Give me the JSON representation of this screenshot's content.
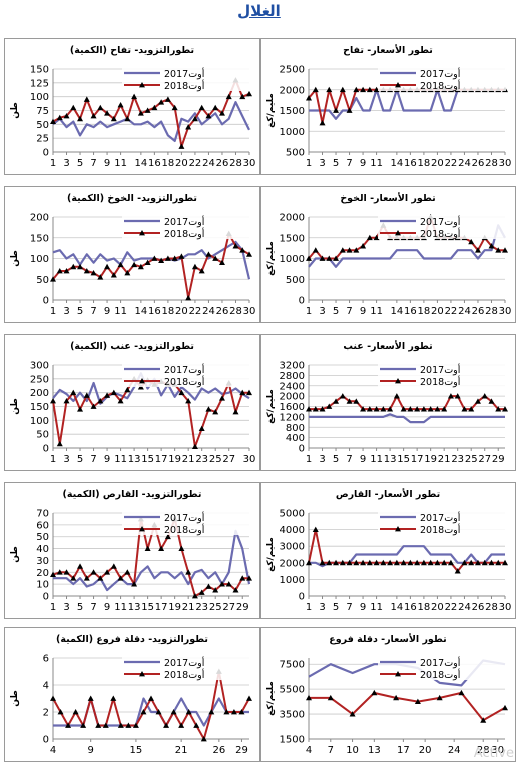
{
  "page": {
    "title": "الغلال"
  },
  "legend_labels": {
    "a": "أوت2017",
    "b": "أوت2018"
  },
  "colors": {
    "series_2017": "#6b6bb0",
    "series_2018": "#b22222",
    "marker_2018": "#000000",
    "grid": "#c8c8c8",
    "frame": "#9a9a9a",
    "title_blue": "#1f4fa3"
  },
  "watermark": "Active",
  "chart_data": [
    {
      "id": "apple-quantity",
      "type": "line",
      "title": "تطورالتزويد- تفاح (الكمية)",
      "ylabel": "طن",
      "xlabel": "",
      "x": [
        1,
        2,
        3,
        4,
        5,
        6,
        7,
        8,
        9,
        10,
        11,
        12,
        13,
        14,
        15,
        16,
        17,
        18,
        19,
        20,
        21,
        22,
        23,
        24,
        25,
        26,
        27,
        28,
        29,
        30
      ],
      "xticks": [
        1,
        3,
        5,
        7,
        9,
        11,
        14,
        16,
        18,
        20,
        22,
        24,
        26,
        28,
        30
      ],
      "yticks": [
        0,
        25,
        50,
        75,
        100,
        125,
        150
      ],
      "ylim": [
        0,
        150
      ],
      "series": [
        {
          "name": "أوت2017",
          "values": [
            50,
            60,
            45,
            55,
            30,
            50,
            45,
            55,
            45,
            50,
            55,
            60,
            50,
            50,
            55,
            45,
            55,
            30,
            20,
            60,
            55,
            70,
            50,
            60,
            70,
            50,
            60,
            90,
            65,
            40
          ]
        },
        {
          "name": "أوت2018",
          "values": [
            55,
            62,
            65,
            80,
            60,
            95,
            65,
            80,
            70,
            60,
            85,
            60,
            100,
            70,
            75,
            80,
            90,
            95,
            80,
            10,
            45,
            60,
            80,
            65,
            80,
            70,
            100,
            130,
            100,
            105
          ]
        }
      ]
    },
    {
      "id": "apple-price",
      "type": "line",
      "title": "تطور الأسعار- تفاح",
      "ylabel": "مليم/كغ",
      "xlabel": "",
      "x": [
        1,
        2,
        3,
        4,
        5,
        6,
        7,
        8,
        9,
        10,
        11,
        12,
        13,
        14,
        15,
        16,
        17,
        18,
        19,
        20,
        21,
        22,
        23,
        24,
        25,
        26,
        27,
        28,
        29,
        30
      ],
      "xticks": [
        1,
        3,
        5,
        7,
        9,
        11,
        14,
        16,
        18,
        20,
        22,
        24,
        26,
        28,
        30
      ],
      "yticks": [
        500,
        1000,
        1500,
        2000,
        2500
      ],
      "ylim": [
        500,
        2500
      ],
      "series": [
        {
          "name": "أوت2017",
          "values": [
            1500,
            1500,
            1500,
            1500,
            1300,
            1500,
            1500,
            1800,
            1500,
            1500,
            2000,
            1500,
            1500,
            2000,
            1500,
            1500,
            1500,
            1500,
            1500,
            2000,
            1500,
            1500,
            2000,
            2000,
            2000,
            2000,
            2000,
            2000,
            2000,
            2000
          ]
        },
        {
          "name": "أوت2018",
          "values": [
            1800,
            2000,
            1200,
            2000,
            1500,
            2000,
            1500,
            2000,
            2000,
            2000,
            2000,
            2000,
            2000,
            2000,
            2000,
            2000,
            2000,
            2000,
            2000,
            2000,
            2000,
            2000,
            2000,
            2000,
            2000,
            2000,
            2000,
            2000,
            2000,
            2000
          ]
        }
      ]
    },
    {
      "id": "peach-quantity",
      "type": "line",
      "title": "تطورالتزويد- الخوخ (الكمية)",
      "ylabel": "طن",
      "xlabel": "",
      "x": [
        1,
        2,
        3,
        4,
        5,
        6,
        7,
        8,
        9,
        10,
        11,
        12,
        13,
        14,
        15,
        16,
        17,
        18,
        19,
        20,
        21,
        22,
        23,
        24,
        25,
        26,
        27,
        28,
        29,
        30
      ],
      "xticks": [
        1,
        3,
        5,
        7,
        9,
        11,
        14,
        16,
        18,
        20,
        22,
        24,
        26,
        28,
        30
      ],
      "yticks": [
        0,
        50,
        100,
        150,
        200
      ],
      "ylim": [
        0,
        200
      ],
      "series": [
        {
          "name": "أوت2017",
          "values": [
            115,
            120,
            100,
            110,
            85,
            110,
            90,
            110,
            95,
            100,
            85,
            115,
            95,
            100,
            100,
            100,
            95,
            100,
            95,
            100,
            110,
            110,
            120,
            100,
            110,
            120,
            130,
            140,
            120,
            50
          ]
        },
        {
          "name": "أوت2018",
          "values": [
            50,
            70,
            70,
            80,
            80,
            70,
            65,
            55,
            80,
            60,
            85,
            65,
            85,
            80,
            90,
            100,
            95,
            100,
            100,
            105,
            5,
            80,
            70,
            110,
            100,
            90,
            160,
            130,
            120,
            110
          ]
        }
      ]
    },
    {
      "id": "peach-price",
      "type": "line",
      "title": "تطور الأسعار- الخوخ",
      "ylabel": "مليم/كغ",
      "xlabel": "",
      "x": [
        1,
        2,
        3,
        4,
        5,
        6,
        7,
        8,
        9,
        10,
        11,
        12,
        13,
        14,
        15,
        16,
        17,
        18,
        19,
        20,
        21,
        22,
        23,
        24,
        25,
        26,
        27,
        28,
        29,
        30
      ],
      "xticks": [
        1,
        3,
        5,
        7,
        9,
        11,
        14,
        16,
        18,
        20,
        22,
        24,
        26,
        28,
        30
      ],
      "yticks": [
        0,
        500,
        1000,
        1500,
        2000
      ],
      "ylim": [
        0,
        2000
      ],
      "series": [
        {
          "name": "أوت2017",
          "values": [
            800,
            1000,
            1000,
            1000,
            800,
            1000,
            1000,
            1000,
            1000,
            1000,
            1000,
            1000,
            1000,
            1200,
            1200,
            1200,
            1200,
            1000,
            1000,
            1000,
            1000,
            1000,
            1200,
            1200,
            1200,
            1000,
            1200,
            1200,
            1800,
            1500
          ]
        },
        {
          "name": "أوت2018",
          "values": [
            1000,
            1200,
            1000,
            1000,
            1000,
            1200,
            1200,
            1200,
            1300,
            1500,
            1500,
            1800,
            1500,
            1500,
            1500,
            1500,
            1500,
            1500,
            2000,
            1500,
            1500,
            1500,
            1500,
            1500,
            1400,
            1200,
            1500,
            1300,
            1200,
            1200
          ]
        }
      ]
    },
    {
      "id": "grape-quantity",
      "type": "line",
      "title": "تطورالتزويد- عنب (الكمية)",
      "ylabel": "طن",
      "xlabel": "",
      "x": [
        1,
        2,
        3,
        4,
        5,
        6,
        7,
        8,
        9,
        10,
        11,
        12,
        13,
        14,
        15,
        16,
        17,
        18,
        19,
        20,
        21,
        22,
        23,
        24,
        25,
        26,
        27,
        28,
        29,
        30
      ],
      "xticks": [
        1,
        3,
        5,
        7,
        9,
        11,
        13,
        15,
        17,
        19,
        21,
        23,
        25,
        27,
        30
      ],
      "yticks": [
        0,
        50,
        100,
        150,
        200,
        250,
        300
      ],
      "ylim": [
        0,
        300
      ],
      "series": [
        {
          "name": "أوت2017",
          "values": [
            180,
            210,
            195,
            170,
            200,
            170,
            235,
            160,
            185,
            200,
            190,
            180,
            220,
            270,
            215,
            250,
            190,
            230,
            185,
            220,
            200,
            175,
            215,
            200,
            215,
            195,
            200,
            215,
            195,
            180
          ]
        },
        {
          "name": "أوت2018",
          "values": [
            170,
            15,
            170,
            200,
            140,
            190,
            150,
            170,
            190,
            200,
            170,
            210,
            250,
            220,
            245,
            230,
            240,
            230,
            230,
            200,
            170,
            5,
            70,
            140,
            130,
            180,
            235,
            130,
            200,
            200
          ]
        }
      ]
    },
    {
      "id": "grape-price",
      "type": "line",
      "title": "تطور الأسعار- عنب",
      "ylabel": "مليم/كغ",
      "xlabel": "",
      "x": [
        1,
        2,
        3,
        4,
        5,
        6,
        7,
        8,
        9,
        10,
        11,
        12,
        13,
        14,
        15,
        16,
        17,
        18,
        19,
        20,
        21,
        22,
        23,
        24,
        25,
        26,
        27,
        28,
        29,
        30
      ],
      "xticks": [
        1,
        3,
        5,
        7,
        9,
        11,
        13,
        15,
        17,
        19,
        21,
        23,
        25,
        27,
        29
      ],
      "yticks": [
        0,
        400,
        800,
        1200,
        1600,
        2000,
        2400,
        2800,
        3200
      ],
      "ylim": [
        0,
        3200
      ],
      "series": [
        {
          "name": "أوت2017",
          "values": [
            1200,
            1200,
            1200,
            1200,
            1200,
            1200,
            1200,
            1200,
            1200,
            1200,
            1200,
            1200,
            1300,
            1200,
            1200,
            1000,
            1000,
            1000,
            1200,
            1200,
            1200,
            1200,
            1200,
            1200,
            1200,
            1200,
            1200,
            1200,
            1200,
            1200
          ]
        },
        {
          "name": "أوت2018",
          "values": [
            1500,
            1500,
            1500,
            1600,
            1800,
            2000,
            1800,
            1800,
            1500,
            1500,
            1500,
            1500,
            1500,
            2000,
            1500,
            1500,
            1500,
            1500,
            1500,
            1500,
            1500,
            2000,
            2000,
            1500,
            1500,
            1800,
            2000,
            1800,
            1500,
            1500
          ]
        }
      ]
    },
    {
      "id": "prickly-pear-quantity",
      "type": "line",
      "title": "تطورالتزويد- القارص (الكمية)",
      "ylabel": "طن",
      "xlabel": "",
      "x": [
        1,
        2,
        3,
        4,
        5,
        6,
        7,
        8,
        9,
        10,
        11,
        12,
        13,
        14,
        15,
        16,
        17,
        18,
        19,
        20,
        21,
        22,
        23,
        24,
        25,
        26,
        27,
        28,
        29,
        30
      ],
      "xticks": [
        1,
        3,
        5,
        7,
        9,
        11,
        13,
        15,
        17,
        19,
        21,
        23,
        25,
        27,
        29
      ],
      "yticks": [
        0,
        10,
        20,
        30,
        40,
        50,
        60,
        70
      ],
      "ylim": [
        0,
        70
      ],
      "series": [
        {
          "name": "أوت2017",
          "values": [
            15,
            15,
            15,
            10,
            15,
            8,
            10,
            15,
            5,
            10,
            15,
            10,
            10,
            20,
            25,
            15,
            20,
            20,
            15,
            20,
            10,
            20,
            22,
            15,
            20,
            10,
            20,
            55,
            40,
            10
          ]
        },
        {
          "name": "أوت2018",
          "values": [
            18,
            20,
            20,
            15,
            25,
            15,
            20,
            15,
            20,
            25,
            15,
            20,
            10,
            65,
            40,
            60,
            40,
            50,
            65,
            40,
            20,
            0,
            3,
            8,
            5,
            10,
            10,
            5,
            15,
            15
          ]
        }
      ]
    },
    {
      "id": "prickly-pear-price",
      "type": "line",
      "title": "تطور الأسعار- القارص",
      "ylabel": "مليم/كغ",
      "xlabel": "",
      "x": [
        1,
        2,
        3,
        4,
        5,
        6,
        7,
        8,
        9,
        10,
        11,
        12,
        13,
        14,
        15,
        16,
        17,
        18,
        19,
        20,
        21,
        22,
        23,
        24,
        25,
        26,
        27,
        28,
        29,
        30
      ],
      "xticks": [
        1,
        3,
        5,
        7,
        9,
        11,
        14,
        16,
        18,
        20,
        22,
        24,
        26,
        28,
        30
      ],
      "yticks": [
        0,
        1000,
        2000,
        3000,
        4000,
        5000
      ],
      "ylim": [
        0,
        5000
      ],
      "series": [
        {
          "name": "أوت2017",
          "values": [
            2000,
            2000,
            1800,
            2000,
            2000,
            2000,
            2000,
            2500,
            2500,
            2500,
            2500,
            2500,
            2500,
            2500,
            3000,
            3000,
            3000,
            3000,
            2500,
            2500,
            2500,
            2500,
            2000,
            2000,
            2500,
            2000,
            2000,
            2500,
            2500,
            2500
          ]
        },
        {
          "name": "أوت2018",
          "values": [
            2000,
            4000,
            2000,
            2000,
            2000,
            2000,
            2000,
            2000,
            2000,
            2000,
            2000,
            2000,
            2000,
            2000,
            2000,
            2000,
            2000,
            2000,
            2000,
            2000,
            2000,
            2000,
            1500,
            2000,
            2000,
            2000,
            2000,
            2000,
            2000,
            2000
          ]
        }
      ]
    },
    {
      "id": "dates-quantity",
      "type": "line",
      "title": "تطورالتزويد- دقلة فروع (الكمية)",
      "ylabel": "طن",
      "xlabel": "",
      "x": [
        4,
        5,
        6,
        7,
        8,
        9,
        10,
        11,
        12,
        13,
        14,
        15,
        16,
        17,
        18,
        19,
        20,
        21,
        22,
        23,
        24,
        25,
        26,
        27,
        28,
        29,
        30
      ],
      "xticks": [
        4,
        9,
        15,
        21,
        26,
        29
      ],
      "yticks": [
        0,
        2,
        4,
        6
      ],
      "ylim": [
        0,
        6
      ],
      "series": [
        {
          "name": "أوت2017",
          "values": [
            1,
            1,
            1,
            1,
            1,
            3,
            1,
            1,
            1,
            1,
            1,
            1,
            3,
            2,
            2,
            1,
            2,
            3,
            2,
            2,
            1,
            2,
            3,
            2,
            2,
            2,
            2
          ]
        },
        {
          "name": "أوت2018",
          "values": [
            3,
            2,
            1,
            2,
            1,
            3,
            1,
            1,
            3,
            1,
            1,
            1,
            2,
            3,
            2,
            1,
            2,
            1,
            2,
            1,
            0,
            2,
            5,
            2,
            2,
            2,
            3
          ]
        }
      ]
    },
    {
      "id": "dates-price",
      "type": "line",
      "title": "تطور الأسعار- دقلة فروع",
      "ylabel": "مليم/كغ",
      "xlabel": "",
      "x": [
        4,
        7,
        10,
        13,
        16,
        19,
        22,
        25,
        28,
        31
      ],
      "xticks": [
        4,
        7,
        10,
        13,
        17,
        20,
        24,
        28,
        30
      ],
      "yticks": [
        1500,
        3500,
        5500,
        7500
      ],
      "ylim": [
        1500,
        8000
      ],
      "series": [
        {
          "name": "أوت2017",
          "values": [
            6500,
            7500,
            6800,
            7500,
            7500,
            7200,
            6000,
            5800,
            7800,
            7500
          ]
        },
        {
          "name": "أوت2018",
          "values": [
            4800,
            4800,
            3500,
            5200,
            4800,
            4500,
            4800,
            5200,
            3000,
            4000
          ]
        }
      ]
    }
  ]
}
